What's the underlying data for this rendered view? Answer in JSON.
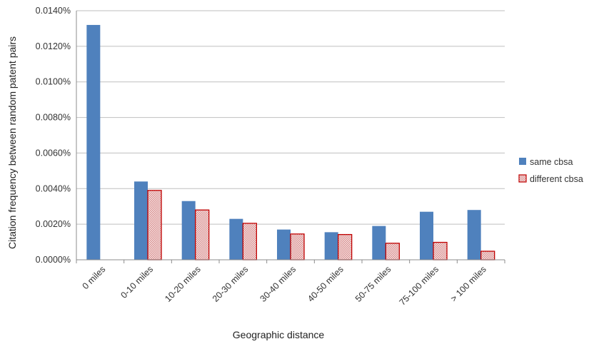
{
  "chart_data": {
    "type": "bar",
    "title": "",
    "xlabel": "Geographic distance",
    "ylabel": "Citation frequency between random patent pairs",
    "categories": [
      "0 miles",
      "0-10 miles",
      "10-20 miles",
      "20-30 miles",
      "30-40 miles",
      "40-50 miles",
      "50-75 miles",
      "75-100 miles",
      "> 100 miles"
    ],
    "series": [
      {
        "name": "same cbsa",
        "color": "#4F81BD",
        "pattern": "solid",
        "values": [
          0.0132,
          0.0044,
          0.0033,
          0.0023,
          0.0017,
          0.00155,
          0.0019,
          0.0027,
          0.0028
        ]
      },
      {
        "name": "different cbsa",
        "color": "#C0504D",
        "pattern": "checker",
        "values": [
          null,
          0.0039,
          0.0028,
          0.00205,
          0.00145,
          0.00142,
          0.00093,
          0.00098,
          0.00048
        ]
      }
    ],
    "ylim": [
      0,
      0.014
    ],
    "yticks": [
      "0.0000%",
      "0.0020%",
      "0.0040%",
      "0.0060%",
      "0.0080%",
      "0.0100%",
      "0.0120%",
      "0.0140%"
    ],
    "ytick_values": [
      0,
      0.002,
      0.004,
      0.006,
      0.008,
      0.01,
      0.012,
      0.014
    ],
    "grid": true,
    "legend_position": "right"
  }
}
